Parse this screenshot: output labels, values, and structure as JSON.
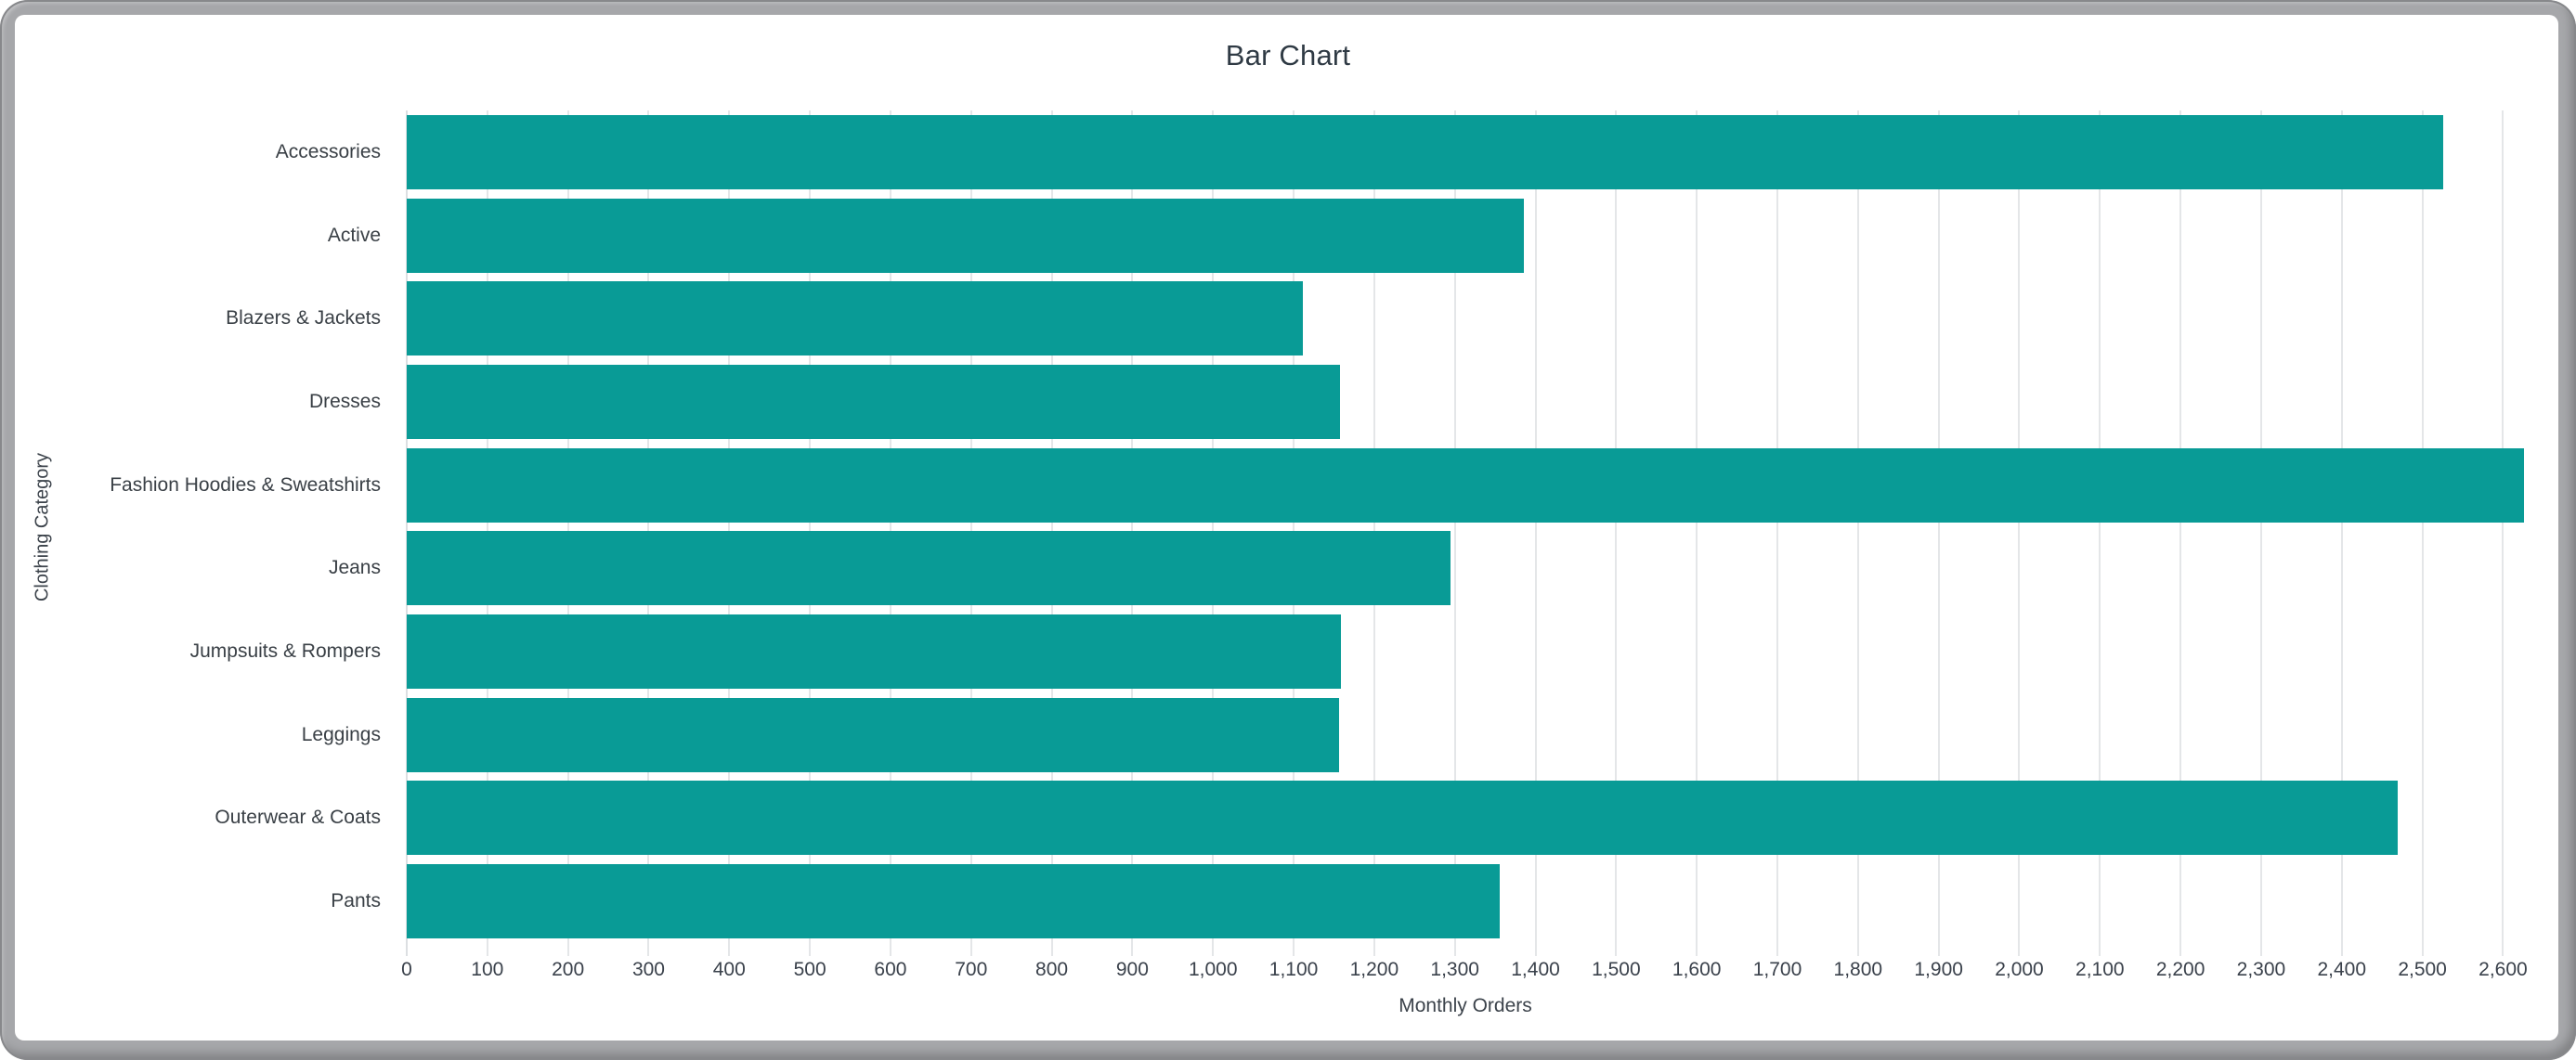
{
  "window": {
    "type": "rounded-window-frame"
  },
  "chart_data": {
    "type": "bar",
    "orientation": "horizontal",
    "title": "Bar Chart",
    "xlabel": "Monthly Orders",
    "ylabel": "Clothing Category",
    "categories": [
      "Accessories",
      "Active",
      "Blazers & Jackets",
      "Dresses",
      "Fashion Hoodies & Sweatshirts",
      "Jeans",
      "Jumpsuits & Rompers",
      "Leggings",
      "Outerwear & Coats",
      "Pants"
    ],
    "values": [
      2526,
      1386,
      1112,
      1158,
      2626,
      1294,
      1159,
      1156,
      2469,
      1356
    ],
    "xlim": [
      0,
      2626
    ],
    "x_tick_step": 100,
    "x_tick_labels": [
      "0",
      "100",
      "200",
      "300",
      "400",
      "500",
      "600",
      "700",
      "800",
      "900",
      "1,000",
      "1,100",
      "1,200",
      "1,300",
      "1,400",
      "1,500",
      "1,600",
      "1,700",
      "1,800",
      "1,900",
      "2,000",
      "2,100",
      "2,200",
      "2,300",
      "2,400",
      "2,500",
      "2,600"
    ],
    "grid": "vertical",
    "legend": "none",
    "bar_color": "#099b96",
    "grid_color": "#e4e6e8",
    "text_color": "#3a414b"
  }
}
